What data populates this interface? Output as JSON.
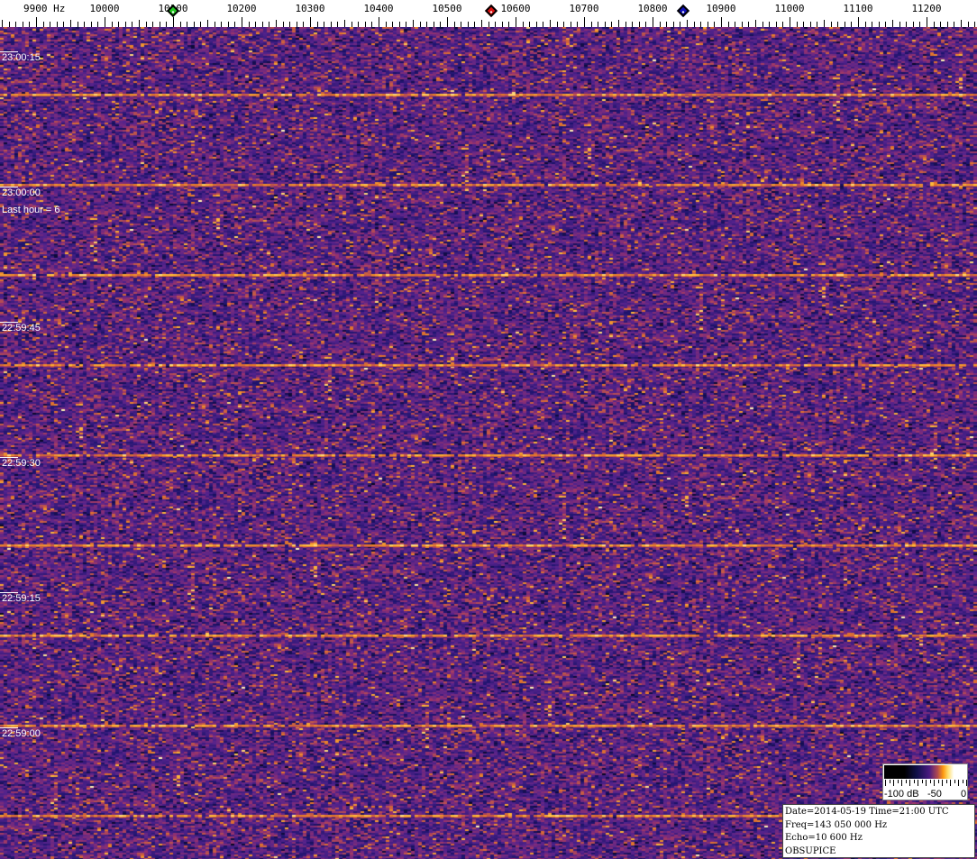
{
  "frequency_axis": {
    "unit": "Hz",
    "ticks": [
      {
        "value": 9900,
        "label": "9900 Hz"
      },
      {
        "value": 10000,
        "label": "10000"
      },
      {
        "value": 10100,
        "label": "10100"
      },
      {
        "value": 10200,
        "label": "10200"
      },
      {
        "value": 10300,
        "label": "10300"
      },
      {
        "value": 10400,
        "label": "10400"
      },
      {
        "value": 10500,
        "label": "10500"
      },
      {
        "value": 10600,
        "label": "10600"
      },
      {
        "value": 10700,
        "label": "10700"
      },
      {
        "value": 10800,
        "label": "10800"
      },
      {
        "value": 10900,
        "label": "10900"
      },
      {
        "value": 11000,
        "label": "11000"
      },
      {
        "value": 11100,
        "label": "11100"
      },
      {
        "value": 11200,
        "label": "11200"
      }
    ],
    "markers": [
      {
        "name": "green-marker",
        "freq": 10100,
        "color": "#22cc22"
      },
      {
        "name": "red-marker",
        "freq": 10565,
        "color": "#dd1111"
      },
      {
        "name": "blue-marker",
        "freq": 10845,
        "color": "#1111bb"
      }
    ]
  },
  "time_labels": [
    {
      "label": "23:00:15",
      "seconds_from_top": 1.5
    },
    {
      "label": "23:00:00",
      "seconds_from_top": 16.5
    },
    {
      "label": "22:59:45",
      "seconds_from_top": 31.5
    },
    {
      "label": "22:59:30",
      "seconds_from_top": 46.5
    },
    {
      "label": "22:59:15",
      "seconds_from_top": 61.5
    },
    {
      "label": "22:59:00",
      "seconds_from_top": 76.5
    }
  ],
  "last_hour_label": "Last hour = 6",
  "colorbar": {
    "min_label": "-100 dB",
    "mid_label": "-50",
    "max_label": "0"
  },
  "info": {
    "line1": "Date=2014-05-19 Time=21:00 UTC",
    "line2": "Freq=143 050 000 Hz",
    "line3": "Echo=10 600 Hz",
    "line4": "OBSUPICE"
  },
  "colors": {
    "background": "#4a2080",
    "signal": "#ffa020"
  }
}
